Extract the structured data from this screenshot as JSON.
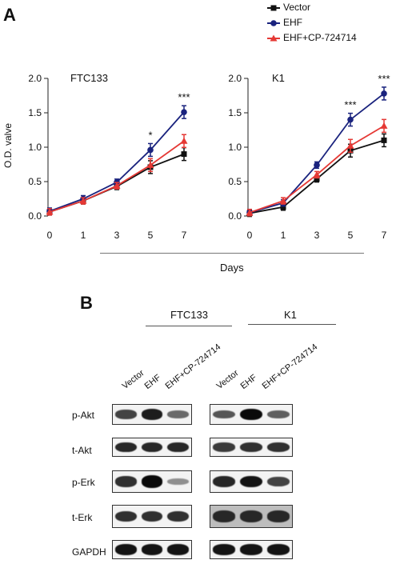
{
  "panel_a_label": "A",
  "panel_b_label": "B",
  "legend": [
    {
      "name": "Vector",
      "color": "#111111",
      "marker": "square"
    },
    {
      "name": "EHF",
      "color": "#1a237e",
      "marker": "circle"
    },
    {
      "name": "EHF+CP-724714",
      "color": "#e53935",
      "marker": "triangle"
    }
  ],
  "chart_data": [
    {
      "type": "line",
      "title": "FTC133",
      "ylabel": "O.D. valve",
      "xlabel": "Days",
      "x_ticks": [
        "0",
        "1",
        "3",
        "5",
        "7"
      ],
      "y_ticks": [
        "0.0",
        "0.5",
        "1.0",
        "1.5",
        "2.0"
      ],
      "ylim": [
        0,
        2.0
      ],
      "series": [
        {
          "name": "Vector",
          "color": "#111111",
          "values": [
            0.06,
            0.22,
            0.43,
            0.71,
            0.9
          ]
        },
        {
          "name": "EHF",
          "color": "#1a237e",
          "values": [
            0.07,
            0.25,
            0.49,
            0.96,
            1.51
          ]
        },
        {
          "name": "EHF+CP-724714",
          "color": "#e53935",
          "values": [
            0.06,
            0.22,
            0.44,
            0.74,
            1.09
          ]
        }
      ],
      "annotations": [
        {
          "x": "5",
          "text": "*"
        },
        {
          "x": "7",
          "text": "***"
        }
      ]
    },
    {
      "type": "line",
      "title": "K1",
      "xlabel": "Days",
      "x_ticks": [
        "0",
        "1",
        "3",
        "5",
        "7"
      ],
      "y_ticks": [
        "0.0",
        "0.5",
        "1.0",
        "1.5",
        "2.0"
      ],
      "ylim": [
        0,
        2.0
      ],
      "series": [
        {
          "name": "Vector",
          "color": "#111111",
          "values": [
            0.04,
            0.13,
            0.54,
            0.95,
            1.1
          ]
        },
        {
          "name": "EHF",
          "color": "#1a237e",
          "values": [
            0.05,
            0.19,
            0.74,
            1.4,
            1.78
          ]
        },
        {
          "name": "EHF+CP-724714",
          "color": "#e53935",
          "values": [
            0.05,
            0.22,
            0.6,
            1.02,
            1.31
          ]
        }
      ],
      "annotations": [
        {
          "x": "5",
          "text": "***"
        },
        {
          "x": "7",
          "text": "***"
        }
      ]
    }
  ],
  "blot": {
    "groups": [
      {
        "name": "FTC133",
        "lanes": [
          "Vector",
          "EHF",
          "EHF+CP-724714"
        ]
      },
      {
        "name": "K1",
        "lanes": [
          "Vector",
          "EHF",
          "EHF+CP-724714"
        ]
      }
    ],
    "rows": [
      {
        "label": "p-Akt",
        "intensity": [
          [
            0.7,
            0.9,
            0.5
          ],
          [
            0.6,
            1.0,
            0.55
          ]
        ]
      },
      {
        "label": "t-Akt",
        "intensity": [
          [
            0.85,
            0.85,
            0.85
          ],
          [
            0.75,
            0.8,
            0.8
          ]
        ]
      },
      {
        "label": "p-Erk",
        "intensity": [
          [
            0.8,
            1.0,
            0.3
          ],
          [
            0.85,
            0.95,
            0.7
          ]
        ]
      },
      {
        "label": "t-Erk",
        "intensity": [
          [
            0.8,
            0.8,
            0.8
          ],
          [
            0.85,
            0.85,
            0.85
          ]
        ]
      },
      {
        "label": "GAPDH",
        "intensity": [
          [
            0.95,
            0.95,
            0.95
          ],
          [
            0.95,
            0.95,
            0.95
          ]
        ]
      }
    ]
  }
}
